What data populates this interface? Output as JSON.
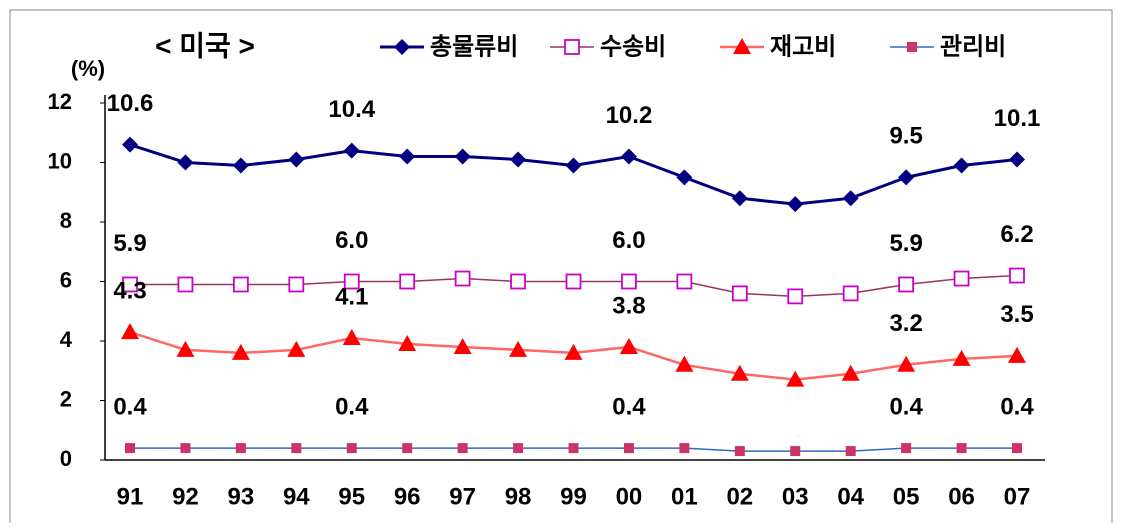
{
  "chart_data": {
    "type": "line",
    "title": "< 미국 >",
    "y_label": "(%)",
    "categories": [
      "91",
      "92",
      "93",
      "94",
      "95",
      "96",
      "97",
      "98",
      "99",
      "00",
      "01",
      "02",
      "03",
      "04",
      "05",
      "06",
      "07"
    ],
    "ylim": [
      0,
      12
    ],
    "yticks": [
      0,
      2,
      4,
      6,
      8,
      10,
      12
    ],
    "series": [
      {
        "name": "총물류비",
        "color": "#000080",
        "marker": "diamond",
        "values": [
          10.6,
          10.0,
          9.9,
          10.1,
          10.4,
          10.2,
          10.2,
          10.1,
          9.9,
          10.2,
          9.5,
          8.8,
          8.6,
          8.8,
          9.5,
          9.9,
          10.1
        ],
        "value_labels": [
          "10.6",
          null,
          null,
          null,
          "10.4",
          null,
          null,
          null,
          null,
          "10.2",
          null,
          null,
          null,
          null,
          "9.5",
          null,
          "10.1"
        ]
      },
      {
        "name": "수송비",
        "color": "#cc00cc",
        "marker": "open-square",
        "values": [
          5.9,
          5.9,
          5.9,
          5.9,
          6.0,
          6.0,
          6.1,
          6.0,
          6.0,
          6.0,
          6.0,
          5.6,
          5.5,
          5.6,
          5.9,
          6.1,
          6.2
        ],
        "value_labels": [
          "5.9",
          null,
          null,
          null,
          "6.0",
          null,
          null,
          null,
          null,
          "6.0",
          null,
          null,
          null,
          null,
          "5.9",
          null,
          "6.2"
        ]
      },
      {
        "name": "재고비",
        "color": "#ff0000",
        "marker": "triangle",
        "values": [
          4.3,
          3.7,
          3.6,
          3.7,
          4.1,
          3.9,
          3.8,
          3.7,
          3.6,
          3.8,
          3.2,
          2.9,
          2.7,
          2.9,
          3.2,
          3.4,
          3.5
        ],
        "value_labels": [
          "4.3",
          null,
          null,
          null,
          "4.1",
          null,
          null,
          null,
          null,
          "3.8",
          null,
          null,
          null,
          null,
          "3.2",
          null,
          "3.5"
        ]
      },
      {
        "name": "관리비",
        "color": "#cc3366",
        "marker": "square",
        "values": [
          0.4,
          0.4,
          0.4,
          0.4,
          0.4,
          0.4,
          0.4,
          0.4,
          0.4,
          0.4,
          0.4,
          0.3,
          0.3,
          0.3,
          0.4,
          0.4,
          0.4
        ],
        "value_labels": [
          "0.4",
          null,
          null,
          null,
          "0.4",
          null,
          null,
          null,
          null,
          "0.4",
          null,
          null,
          null,
          null,
          "0.4",
          null,
          "0.4"
        ]
      }
    ]
  }
}
